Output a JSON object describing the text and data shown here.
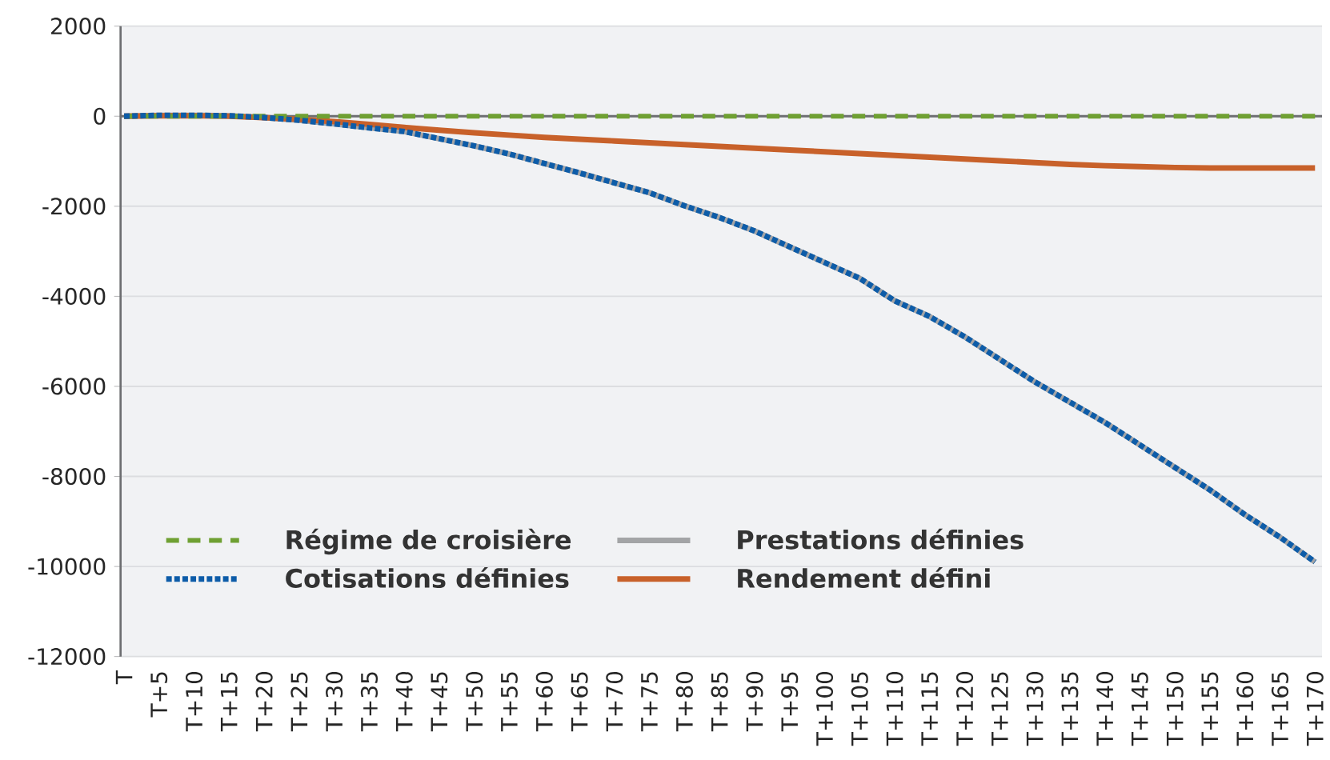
{
  "chart_data": {
    "type": "line",
    "categories": [
      "T",
      "T+5",
      "T+10",
      "T+15",
      "T+20",
      "T+25",
      "T+30",
      "T+35",
      "T+40",
      "T+45",
      "T+50",
      "T+55",
      "T+60",
      "T+65",
      "T+70",
      "T+75",
      "T+80",
      "T+85",
      "T+90",
      "T+95",
      "T+100",
      "T+105",
      "T+110",
      "T+115",
      "T+120",
      "T+125",
      "T+130",
      "T+135",
      "T+140",
      "T+145",
      "T+150",
      "T+155",
      "T+160",
      "T+165",
      "T+170"
    ],
    "series": [
      {
        "name": "Régime de croisière",
        "color": "#6fa032",
        "line_style": "dashed",
        "values": [
          0,
          0,
          0,
          0,
          0,
          0,
          0,
          0,
          0,
          0,
          0,
          0,
          0,
          0,
          0,
          0,
          0,
          0,
          0,
          0,
          0,
          0,
          0,
          0,
          0,
          0,
          0,
          0,
          0,
          0,
          0,
          0,
          0,
          0,
          0
        ]
      },
      {
        "name": "Prestations définies",
        "color": "#a3a4a6",
        "line_style": "solid",
        "values": [
          0,
          20,
          20,
          10,
          -30,
          -90,
          -170,
          -260,
          -340,
          -500,
          -660,
          -840,
          -1050,
          -1260,
          -1480,
          -1700,
          -1990,
          -2250,
          -2550,
          -2900,
          -3250,
          -3600,
          -4100,
          -4450,
          -4900,
          -5400,
          -5900,
          -6350,
          -6800,
          -7300,
          -7800,
          -8300,
          -8850,
          -9350,
          -9900
        ]
      },
      {
        "name": "Cotisations définies",
        "color": "#0d5ca8",
        "line_style": "dotted",
        "values": [
          0,
          20,
          20,
          10,
          -30,
          -90,
          -170,
          -260,
          -340,
          -500,
          -660,
          -840,
          -1050,
          -1260,
          -1480,
          -1700,
          -1990,
          -2250,
          -2550,
          -2900,
          -3250,
          -3600,
          -4100,
          -4450,
          -4900,
          -5400,
          -5900,
          -6350,
          -6800,
          -7300,
          -7800,
          -8300,
          -8850,
          -9350,
          -9900
        ]
      },
      {
        "name": "Rendement défini",
        "color": "#c8612a",
        "line_style": "solid",
        "values": [
          0,
          10,
          10,
          0,
          -30,
          -70,
          -120,
          -180,
          -250,
          -310,
          -370,
          -420,
          -470,
          -510,
          -550,
          -590,
          -630,
          -670,
          -710,
          -750,
          -790,
          -830,
          -870,
          -910,
          -950,
          -990,
          -1030,
          -1070,
          -1100,
          -1120,
          -1140,
          -1150,
          -1150,
          -1150,
          -1150
        ]
      }
    ],
    "ylim": [
      -12000,
      2000
    ],
    "yticks": [
      -12000,
      -10000,
      -8000,
      -6000,
      -4000,
      -2000,
      0,
      2000
    ],
    "ref_lines": [
      {
        "axis": "y",
        "value": 0,
        "color": "#6d6e71"
      }
    ],
    "grid": "y",
    "legend": "bottom left",
    "marker": "none"
  }
}
